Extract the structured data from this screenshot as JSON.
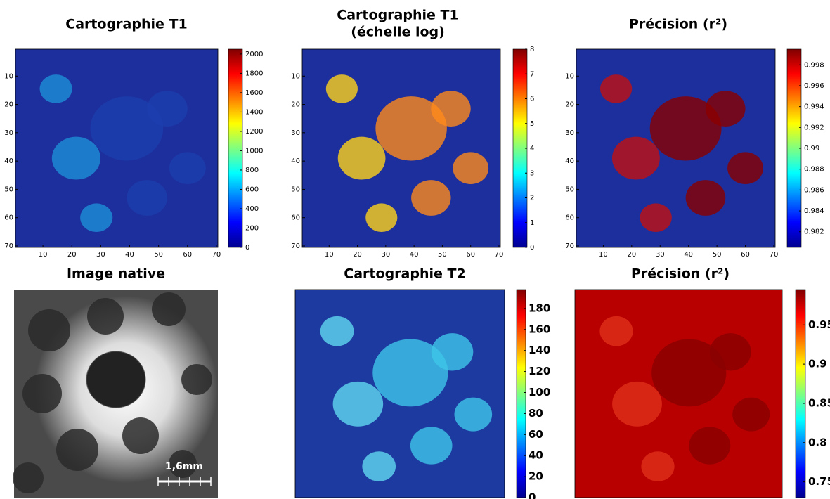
{
  "chart_data": [
    {
      "type": "heatmap",
      "title": "Cartographie T1",
      "colormap": "jet",
      "xlim": [
        0.5,
        70.5
      ],
      "ylim": [
        0.5,
        70.5
      ],
      "yreverse": true,
      "xticks": [
        10,
        20,
        30,
        40,
        50,
        60,
        70
      ],
      "yticks": [
        10,
        20,
        30,
        40,
        50,
        60,
        70
      ],
      "clim": [
        0,
        2050
      ],
      "cticks": [
        0,
        200,
        400,
        600,
        800,
        1000,
        1200,
        1400,
        1600,
        1800,
        2000
      ]
    },
    {
      "type": "heatmap",
      "title": "Cartographie T1",
      "subtitle": "(échelle log)",
      "colormap": "jet",
      "xlim": [
        0.5,
        70.5
      ],
      "ylim": [
        0.5,
        70.5
      ],
      "yreverse": true,
      "xticks": [
        10,
        20,
        30,
        40,
        50,
        60,
        70
      ],
      "yticks": [
        10,
        20,
        30,
        40,
        50,
        60,
        70
      ],
      "clim": [
        0,
        8
      ],
      "cticks": [
        0,
        1,
        2,
        3,
        4,
        5,
        6,
        7,
        8
      ]
    },
    {
      "type": "heatmap",
      "title": "Précision (r²)",
      "colormap": "jet",
      "xlim": [
        0.5,
        70.5
      ],
      "ylim": [
        0.5,
        70.5
      ],
      "yreverse": true,
      "xticks": [
        10,
        20,
        30,
        40,
        50,
        60,
        70
      ],
      "yticks": [
        10,
        20,
        30,
        40,
        50,
        60,
        70
      ],
      "clim": [
        0.9805,
        0.9995
      ],
      "cticks": [
        0.982,
        0.984,
        0.986,
        0.988,
        0.99,
        0.992,
        0.994,
        0.996,
        0.998
      ]
    },
    {
      "type": "image",
      "title": "Image native",
      "scale_bar": "1,6mm"
    },
    {
      "type": "heatmap",
      "title": "Cartographie T2",
      "colormap": "jet",
      "clim": [
        0,
        198
      ],
      "cticks": [
        0,
        20,
        40,
        60,
        80,
        100,
        120,
        140,
        160,
        180
      ]
    },
    {
      "type": "heatmap",
      "title": "Précision (r²)",
      "colormap": "jet",
      "clim": [
        0.73,
        0.995
      ],
      "cticks": [
        0.75,
        0.8,
        0.85,
        0.9,
        0.95
      ]
    }
  ]
}
